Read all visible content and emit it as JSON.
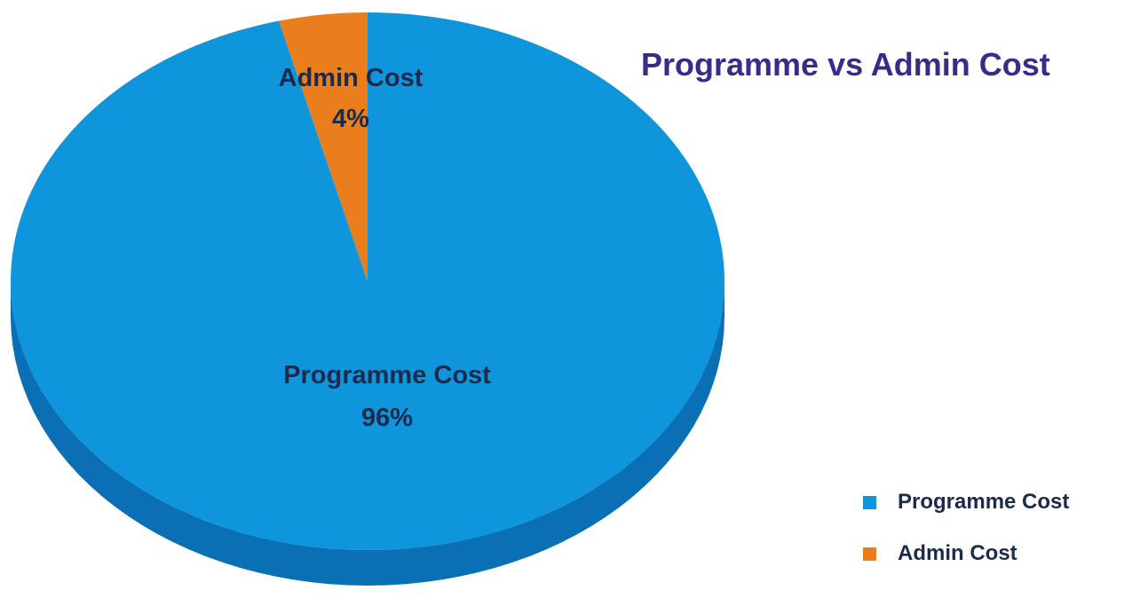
{
  "chart_data": {
    "type": "pie",
    "title": "Programme vs Admin Cost",
    "slices": [
      {
        "label": "Programme Cost",
        "value": 96,
        "value_label": "96%",
        "color": "#0f95dc"
      },
      {
        "label": "Admin Cost",
        "value": 4,
        "value_label": "4%",
        "color": "#ea7d1c"
      }
    ],
    "legend": {
      "position": "bottom-right",
      "entries": [
        "Programme Cost",
        "Admin Cost"
      ]
    },
    "style": "3d"
  },
  "colors": {
    "title": "#3b2a8a",
    "data_label": "#1c2b4a",
    "programme_side": "#0b6fb6",
    "admin_side": "#b05c10"
  }
}
